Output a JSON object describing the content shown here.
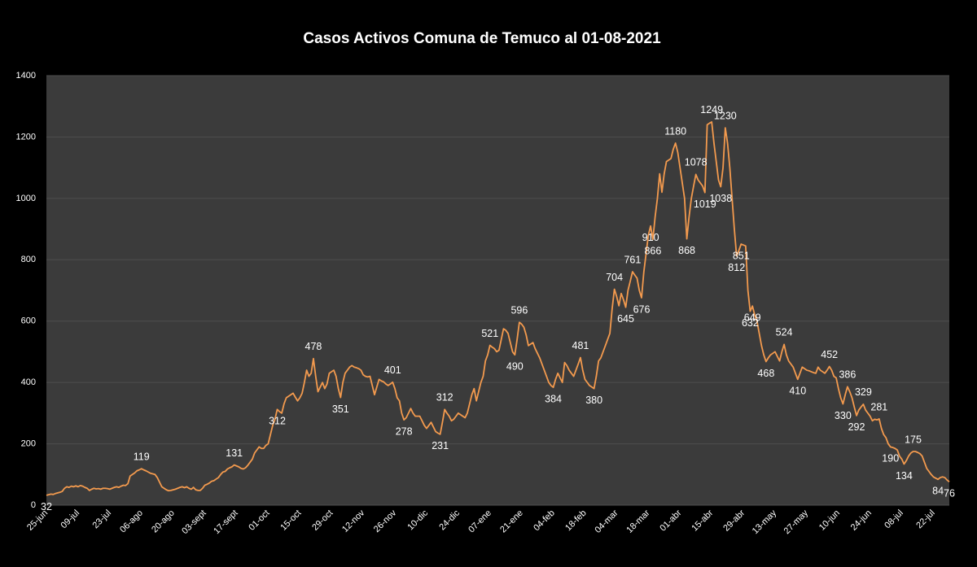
{
  "chart_data": {
    "type": "line",
    "title": "Casos Activos Comuna de Temuco al  01-08-2021",
    "categories": [
      "25-jun",
      null,
      null,
      null,
      null,
      null,
      null,
      null,
      null,
      null,
      null,
      null,
      null,
      null,
      "09-jul",
      null,
      null,
      null,
      null,
      null,
      null,
      null,
      null,
      null,
      null,
      null,
      null,
      null,
      "23-jul",
      null,
      null,
      null,
      null,
      null,
      null,
      null,
      null,
      null,
      null,
      null,
      null,
      null,
      "06-ago",
      null,
      null,
      null,
      null,
      null,
      null,
      null,
      null,
      null,
      null,
      null,
      null,
      null,
      "20-ago",
      null,
      null,
      null,
      null,
      null,
      null,
      null,
      null,
      null,
      null,
      null,
      null,
      null,
      "03-sept",
      null,
      null,
      null,
      null,
      null,
      null,
      null,
      null,
      null,
      null,
      null,
      null,
      null,
      "17-sept",
      null,
      null,
      null,
      null,
      null,
      null,
      null,
      null,
      null,
      null,
      null,
      null,
      null,
      "01-oct",
      null,
      null,
      null,
      null,
      null,
      null,
      null,
      null,
      null,
      null,
      null,
      null,
      null,
      "15-oct",
      null,
      null,
      null,
      null,
      null,
      null,
      null,
      null,
      null,
      null,
      null,
      null,
      null,
      "29-oct",
      null,
      null,
      null,
      null,
      null,
      null,
      null,
      null,
      null,
      null,
      null,
      null,
      null,
      "12-nov",
      null,
      null,
      null,
      null,
      null,
      null,
      null,
      null,
      null,
      null,
      null,
      null,
      null,
      "26-nov",
      null,
      null,
      null,
      null,
      null,
      null,
      null,
      null,
      null,
      null,
      null,
      null,
      null,
      "10-dic",
      null,
      null,
      null,
      null,
      null,
      null,
      null,
      null,
      null,
      null,
      null,
      null,
      null,
      "24-dic",
      null,
      null,
      null,
      null,
      null,
      null,
      null,
      null,
      null,
      null,
      null,
      null,
      null,
      "07-ene",
      null,
      null,
      null,
      null,
      null,
      null,
      null,
      null,
      null,
      null,
      null,
      null,
      null,
      "21-ene",
      null,
      null,
      null,
      null,
      null,
      null,
      null,
      null,
      null,
      null,
      null,
      null,
      null,
      "04-feb",
      null,
      null,
      null,
      null,
      null,
      null,
      null,
      null,
      null,
      null,
      null,
      null,
      null,
      "18-feb",
      null,
      null,
      null,
      null,
      null,
      null,
      null,
      null,
      null,
      null,
      null,
      null,
      null,
      "04-mar",
      null,
      null,
      null,
      null,
      null,
      null,
      null,
      null,
      null,
      null,
      null,
      null,
      null,
      "18-mar",
      null,
      null,
      null,
      null,
      null,
      null,
      null,
      null,
      null,
      null,
      null,
      null,
      null,
      "01-abr",
      null,
      null,
      null,
      null,
      null,
      null,
      null,
      null,
      null,
      null,
      null,
      null,
      null,
      "15-abr",
      null,
      null,
      null,
      null,
      null,
      null,
      null,
      null,
      null,
      null,
      null,
      null,
      null,
      "29-abr",
      null,
      null,
      null,
      null,
      null,
      null,
      null,
      null,
      null,
      null,
      null,
      null,
      null,
      "13-may",
      null,
      null,
      null,
      null,
      null,
      null,
      null,
      null,
      null,
      null,
      null,
      null,
      null,
      "27-may",
      null,
      null,
      null,
      null,
      null,
      null,
      null,
      null,
      null,
      null,
      null,
      null,
      null,
      "10-jun",
      null,
      null,
      null,
      null,
      null,
      null,
      null,
      null,
      null,
      null,
      null,
      null,
      null,
      "24-jun",
      null,
      null,
      null,
      null,
      null,
      null,
      null,
      null,
      null,
      null,
      null,
      null,
      null,
      "08-jul",
      null,
      null,
      null,
      null,
      null,
      null,
      null,
      null,
      null,
      null,
      null,
      null,
      null,
      "22-jul",
      null,
      null,
      null,
      null,
      null,
      null,
      null
    ],
    "values": [
      32,
      34,
      36,
      35,
      38,
      40,
      42,
      45,
      55,
      60,
      58,
      62,
      60,
      63,
      60,
      64,
      62,
      58,
      55,
      48,
      52,
      55,
      53,
      54,
      52,
      55,
      55,
      54,
      52,
      55,
      58,
      60,
      58,
      62,
      65,
      64,
      70,
      95,
      100,
      105,
      112,
      115,
      119,
      115,
      112,
      108,
      104,
      102,
      100,
      90,
      75,
      60,
      55,
      50,
      47,
      48,
      50,
      52,
      55,
      58,
      60,
      57,
      60,
      55,
      52,
      58,
      50,
      48,
      48,
      55,
      65,
      68,
      72,
      78,
      80,
      85,
      90,
      100,
      108,
      110,
      118,
      122,
      125,
      131,
      128,
      125,
      120,
      118,
      122,
      130,
      140,
      150,
      170,
      180,
      190,
      185,
      185,
      195,
      200,
      230,
      260,
      280,
      312,
      305,
      300,
      330,
      350,
      355,
      360,
      365,
      352,
      340,
      350,
      365,
      400,
      440,
      420,
      430,
      478,
      420,
      370,
      385,
      400,
      380,
      395,
      430,
      435,
      440,
      420,
      380,
      351,
      400,
      430,
      440,
      450,
      455,
      450,
      448,
      445,
      440,
      425,
      420,
      418,
      420,
      390,
      360,
      385,
      410,
      405,
      402,
      395,
      390,
      395,
      401,
      380,
      350,
      340,
      300,
      278,
      285,
      300,
      315,
      300,
      290,
      290,
      290,
      275,
      260,
      250,
      260,
      270,
      255,
      240,
      235,
      231,
      270,
      312,
      300,
      290,
      275,
      280,
      290,
      300,
      295,
      290,
      285,
      300,
      330,
      360,
      380,
      340,
      370,
      400,
      420,
      470,
      490,
      521,
      515,
      510,
      500,
      505,
      540,
      575,
      570,
      560,
      530,
      500,
      490,
      540,
      596,
      590,
      580,
      555,
      520,
      525,
      530,
      510,
      495,
      480,
      460,
      440,
      420,
      400,
      390,
      384,
      410,
      430,
      415,
      400,
      465,
      455,
      440,
      430,
      420,
      440,
      460,
      481,
      440,
      410,
      400,
      390,
      385,
      380,
      420,
      470,
      480,
      500,
      520,
      540,
      560,
      640,
      704,
      680,
      650,
      690,
      670,
      645,
      700,
      730,
      761,
      750,
      740,
      700,
      676,
      760,
      820,
      880,
      910,
      866,
      940,
      1000,
      1080,
      1020,
      1080,
      1120,
      1125,
      1130,
      1160,
      1180,
      1150,
      1100,
      1050,
      1000,
      868,
      940,
      1000,
      1040,
      1078,
      1060,
      1050,
      1040,
      1019,
      1240,
      1245,
      1249,
      1180,
      1120,
      1060,
      1038,
      1100,
      1230,
      1180,
      1100,
      1000,
      900,
      812,
      830,
      851,
      848,
      845,
      700,
      632,
      649,
      620,
      600,
      560,
      520,
      490,
      468,
      480,
      490,
      495,
      500,
      485,
      470,
      500,
      524,
      490,
      470,
      460,
      450,
      430,
      410,
      430,
      450,
      445,
      440,
      438,
      435,
      432,
      430,
      450,
      440,
      435,
      430,
      440,
      452,
      440,
      420,
      415,
      380,
      350,
      330,
      360,
      386,
      370,
      350,
      320,
      292,
      310,
      320,
      329,
      310,
      300,
      290,
      275,
      280,
      278,
      281,
      250,
      230,
      220,
      200,
      190,
      188,
      185,
      180,
      160,
      150,
      134,
      145,
      160,
      170,
      175,
      175,
      172,
      168,
      160,
      140,
      120,
      110,
      100,
      92,
      88,
      84,
      90,
      92,
      90,
      82,
      76
    ],
    "labeled_points": [
      0,
      42,
      83,
      102,
      118,
      130,
      153,
      158,
      174,
      176,
      196,
      207,
      209,
      224,
      236,
      242,
      251,
      256,
      259,
      263,
      267,
      268,
      278,
      283,
      287,
      291,
      294,
      298,
      300,
      305,
      307,
      311,
      312,
      318,
      326,
      332,
      346,
      352,
      354,
      358,
      361,
      368,
      373,
      379,
      383,
      394,
      399
    ],
    "color": "#f39a4e",
    "ylim": [
      0,
      1400
    ],
    "yticks": [
      0,
      200,
      400,
      600,
      800,
      1000,
      1200,
      1400
    ],
    "grid": true
  }
}
